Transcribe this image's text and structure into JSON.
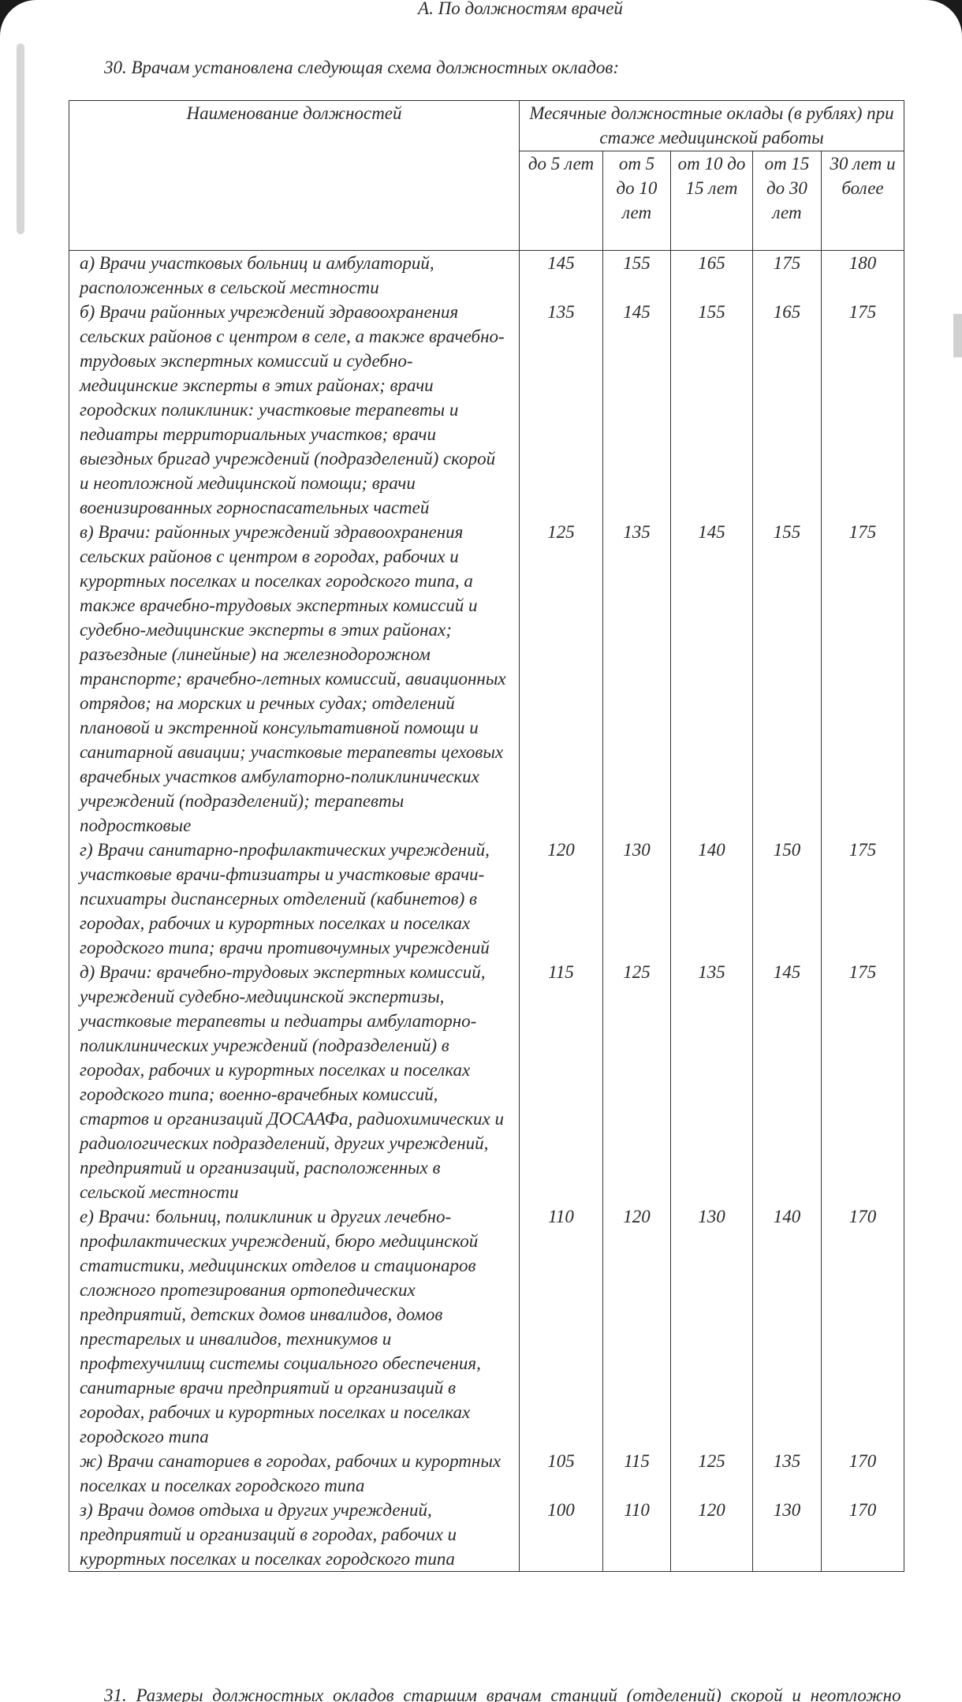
{
  "section_title": "А. По должностям врачей",
  "intro": "30. Врачам установлена следующая схема должностных окладов:",
  "table": {
    "header": {
      "name": "Наименование должностей",
      "group": "Месячные должностные оклады (в рублях) при стаже медицинской работы",
      "columns": [
        "до 5 лет",
        "от 5 до 10 лет",
        "от 10 до 15 лет",
        "от 15 до 30 лет",
        "30 лет и более"
      ]
    },
    "rows": [
      {
        "label": "а) Врачи участковых больниц и амбулаторий, расположенных в сельской местности",
        "values": [
          145,
          155,
          165,
          175,
          180
        ]
      },
      {
        "label": "б) Врачи районных учреждений здравоохранения сельских районов с центром в селе, а также врачебно-трудовых экспертных комиссий и судебно-медицинские эксперты в этих районах; врачи городских поликлиник: участковые терапевты и педиатры территориальных участков; врачи выездных бригад учреждений (подразделений) скорой и неотложной медицинской помощи; врачи военизированных горноспасательных частей",
        "values": [
          135,
          145,
          155,
          165,
          175
        ]
      },
      {
        "label": "в) Врачи: районных учреждений здравоохранения сельских районов с центром в городах, рабочих и курортных поселках и поселках городского типа, а также врачебно-трудовых экспертных комиссий и судебно-медицинские эксперты в этих районах; разъездные (линейные) на железнодорожном транспорте; врачебно-летных комиссий, авиационных отрядов; на морских и речных судах; отделений плановой и экстренной консультативной помощи и санитарной авиации; участковые терапевты цеховых врачебных участков амбулаторно-поликлинических учреждений (подразделений); терапевты подростковые",
        "values": [
          125,
          135,
          145,
          155,
          175
        ]
      },
      {
        "label": "г) Врачи санитарно-профилактических учреждений, участковые врачи-фтизиатры и участковые врачи-психиатры диспансерных отделений (кабинетов) в городах, рабочих и курортных поселках и поселках городского типа; врачи противочумных учреждений",
        "values": [
          120,
          130,
          140,
          150,
          175
        ]
      },
      {
        "label": "д) Врачи: врачебно-трудовых экспертных комиссий, учреждений судебно-медицинской экспертизы, участковые терапевты и педиатры амбулаторно-поликлинических учреждений (подразделений) в городах, рабочих и курортных поселках и поселках городского типа; военно-врачебных комиссий, стартов и организаций ДОСААФа, радиохимических и радиологических подразделений, других учреждений, предприятий и организаций, расположенных в сельской местности",
        "values": [
          115,
          125,
          135,
          145,
          175
        ]
      },
      {
        "label": "е) Врачи: больниц, поликлиник и других лечебно-профилактических учреждений, бюро медицинской статистики, медицинских отделов и стационаров сложного протезирования ортопедических предприятий, детских домов инвалидов, домов престарелых и инвалидов, техникумов и профтехучилищ системы социального обеспечения, санитарные врачи предприятий и организаций в городах, рабочих и курортных поселках и поселках городского типа",
        "values": [
          110,
          120,
          130,
          140,
          170
        ]
      },
      {
        "label": "ж) Врачи санаториев в городах, рабочих и курортных поселках и поселках городского типа",
        "values": [
          105,
          115,
          125,
          135,
          170
        ]
      },
      {
        "label": "з) Врачи домов отдыха и других учреждений, предприятий и организаций в городах, рабочих и курортных поселках и поселках городского типа",
        "values": [
          100,
          110,
          120,
          130,
          170
        ]
      }
    ]
  },
  "next_paragraph": "31. Размеры должностных окладов старшим врачам станций (отделений) скорой и неотложно"
}
